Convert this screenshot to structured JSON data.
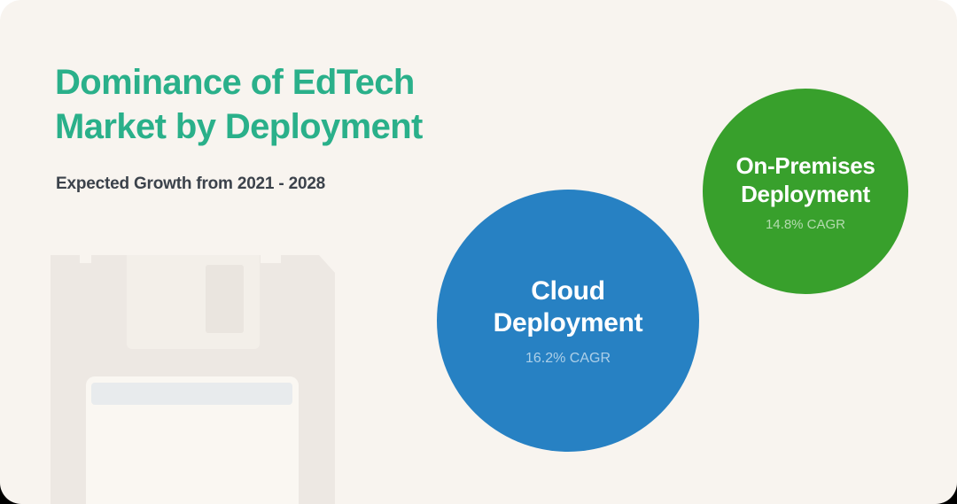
{
  "card": {
    "title_line1": "Dominance of EdTech",
    "title_line2": "Market by Deployment",
    "subtitle": "Expected Growth from 2021 - 2028"
  },
  "bubbles": [
    {
      "label_line1": "Cloud",
      "label_line2": "Deployment",
      "cagr": "16.2% CAGR",
      "color": "#2781C3"
    },
    {
      "label_line1": "On-Premises",
      "label_line2": "Deployment",
      "cagr": "14.8% CAGR",
      "color": "#38A02C"
    }
  ],
  "colors": {
    "card_background": "#F8F4EF",
    "title_green": "#2AB08A",
    "subtitle_dark": "#3B424B",
    "cloud_blue": "#2781C3",
    "onprem_green": "#38A02C",
    "cagr_text": "rgba(255,255,255,0.62)",
    "floppy_fill": "#EDE8E3"
  },
  "decorations": {
    "floppy_disk_icon": "floppy-disk"
  },
  "chart_data": {
    "type": "bubble",
    "title": "Dominance of EdTech Market by Deployment",
    "subtitle": "Expected Growth from 2021 - 2028",
    "period": "2021 - 2028",
    "metric": "CAGR (%)",
    "series": [
      {
        "name": "Cloud Deployment",
        "cagr_percent": 16.2,
        "value_label": "16.2% CAGR",
        "color": "#2781C3",
        "relative_bubble_size": "large"
      },
      {
        "name": "On-Premises Deployment",
        "cagr_percent": 14.8,
        "value_label": "14.8% CAGR",
        "color": "#38A02C",
        "relative_bubble_size": "small"
      }
    ],
    "legend_position": "none",
    "grid": false
  }
}
